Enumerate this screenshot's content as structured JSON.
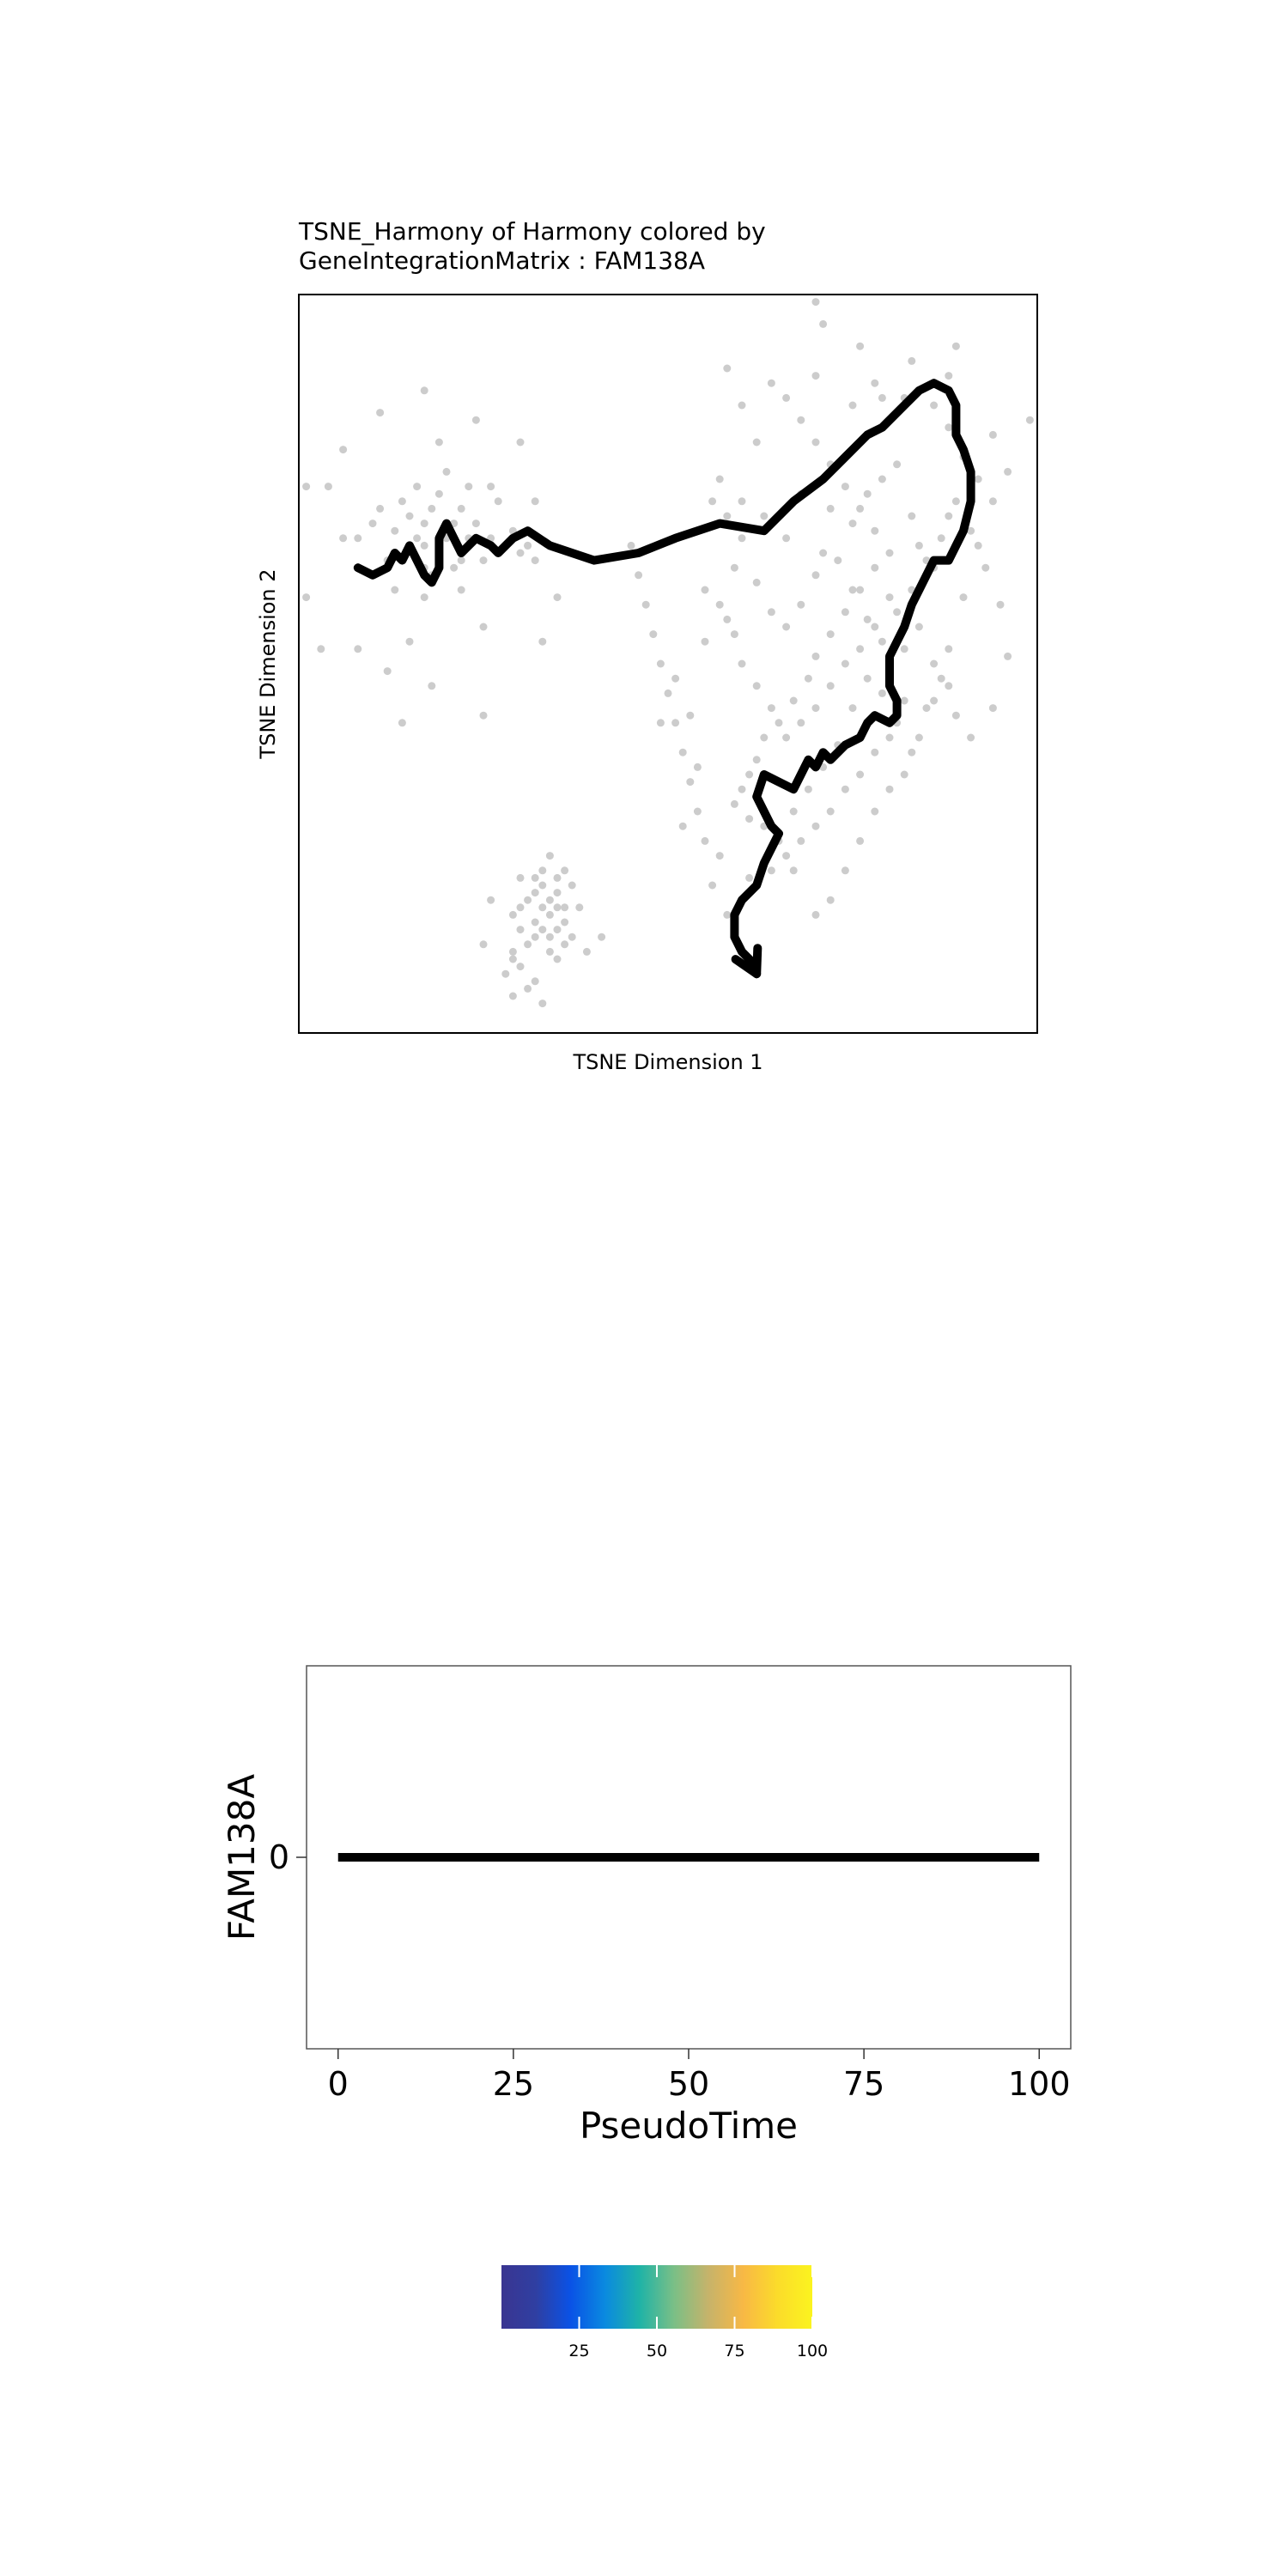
{
  "chart_data": [
    {
      "type": "scatter",
      "title": "TSNE_Harmony of Harmony colored by",
      "subtitle": "GeneIntegrationMatrix : FAM138A",
      "xlabel": "TSNE Dimension 1",
      "ylabel": "TSNE Dimension 2",
      "xlim": [
        0,
        100
      ],
      "ylim": [
        0,
        100
      ],
      "grid": false,
      "point_color": "#cccccc",
      "trajectory_color": "#000000",
      "points": [
        [
          4,
          74
        ],
        [
          6,
          67
        ],
        [
          8,
          67
        ],
        [
          10,
          69
        ],
        [
          11,
          71
        ],
        [
          12,
          64
        ],
        [
          13,
          60
        ],
        [
          13,
          68
        ],
        [
          14,
          72
        ],
        [
          15,
          70
        ],
        [
          16,
          67
        ],
        [
          16,
          74
        ],
        [
          17,
          63
        ],
        [
          17,
          66
        ],
        [
          17,
          69
        ],
        [
          18,
          71
        ],
        [
          18,
          62
        ],
        [
          19,
          73
        ],
        [
          20,
          67
        ],
        [
          20,
          76
        ],
        [
          21,
          69
        ],
        [
          21,
          63
        ],
        [
          22,
          71
        ],
        [
          22,
          64
        ],
        [
          23,
          67
        ],
        [
          23,
          74
        ],
        [
          24,
          69
        ],
        [
          25,
          64
        ],
        [
          26,
          67
        ],
        [
          27,
          72
        ],
        [
          28,
          66
        ],
        [
          29,
          68
        ],
        [
          30,
          65
        ],
        [
          31,
          66
        ],
        [
          32,
          64
        ],
        [
          25,
          55
        ],
        [
          22,
          60
        ],
        [
          17,
          59
        ],
        [
          15,
          53
        ],
        [
          12,
          49
        ],
        [
          8,
          52
        ],
        [
          1,
          74
        ],
        [
          1,
          59
        ],
        [
          6,
          79
        ],
        [
          11,
          84
        ],
        [
          17,
          87
        ],
        [
          19,
          80
        ],
        [
          24,
          83
        ],
        [
          26,
          74
        ],
        [
          30,
          80
        ],
        [
          31,
          66
        ],
        [
          32,
          72
        ],
        [
          33,
          53
        ],
        [
          35,
          59
        ],
        [
          25,
          43
        ],
        [
          14,
          42
        ],
        [
          18,
          47
        ],
        [
          3,
          52
        ],
        [
          32,
          15
        ],
        [
          34,
          16
        ],
        [
          35,
          17
        ],
        [
          33,
          14
        ],
        [
          34,
          13
        ],
        [
          31,
          12
        ],
        [
          30,
          9
        ],
        [
          29,
          11
        ],
        [
          36,
          15
        ],
        [
          35,
          14
        ],
        [
          33,
          17
        ],
        [
          32,
          19
        ],
        [
          34,
          18
        ],
        [
          33,
          20
        ],
        [
          31,
          18
        ],
        [
          32,
          13
        ],
        [
          30,
          14
        ],
        [
          29,
          16
        ],
        [
          34,
          11
        ],
        [
          36,
          12
        ],
        [
          35,
          10
        ],
        [
          37,
          13
        ],
        [
          35,
          19
        ],
        [
          30,
          17
        ],
        [
          33,
          22
        ],
        [
          32,
          21
        ],
        [
          35,
          21
        ],
        [
          36,
          22
        ],
        [
          30,
          21
        ],
        [
          34,
          24
        ],
        [
          37,
          20
        ],
        [
          38,
          17
        ],
        [
          39,
          11
        ],
        [
          41,
          13
        ],
        [
          36,
          17
        ],
        [
          31,
          6
        ],
        [
          29,
          5
        ],
        [
          28,
          8
        ],
        [
          26,
          18
        ],
        [
          29,
          10
        ],
        [
          32,
          7
        ],
        [
          33,
          4
        ],
        [
          25,
          12
        ],
        [
          57,
          75
        ],
        [
          63,
          70
        ],
        [
          66,
          67
        ],
        [
          71,
          65
        ],
        [
          68,
          73
        ],
        [
          72,
          71
        ],
        [
          75,
          69
        ],
        [
          77,
          73
        ],
        [
          79,
          75
        ],
        [
          81,
          77
        ],
        [
          83,
          70
        ],
        [
          84,
          66
        ],
        [
          86,
          63
        ],
        [
          80,
          59
        ],
        [
          78,
          63
        ],
        [
          76,
          60
        ],
        [
          74,
          57
        ],
        [
          72,
          54
        ],
        [
          70,
          51
        ],
        [
          69,
          48
        ],
        [
          67,
          45
        ],
        [
          65,
          42
        ],
        [
          63,
          40
        ],
        [
          62,
          37
        ],
        [
          61,
          35
        ],
        [
          60,
          33
        ],
        [
          59,
          31
        ],
        [
          61,
          29
        ],
        [
          63,
          28
        ],
        [
          65,
          26
        ],
        [
          67,
          30
        ],
        [
          69,
          33
        ],
        [
          71,
          36
        ],
        [
          73,
          39
        ],
        [
          75,
          44
        ],
        [
          77,
          48
        ],
        [
          79,
          53
        ],
        [
          81,
          57
        ],
        [
          83,
          60
        ],
        [
          85,
          64
        ],
        [
          87,
          67
        ],
        [
          88,
          70
        ],
        [
          80,
          65
        ],
        [
          78,
          68
        ],
        [
          76,
          71
        ],
        [
          74,
          74
        ],
        [
          72,
          77
        ],
        [
          70,
          80
        ],
        [
          68,
          83
        ],
        [
          66,
          86
        ],
        [
          64,
          88
        ],
        [
          62,
          80
        ],
        [
          60,
          85
        ],
        [
          58,
          90
        ],
        [
          70,
          89
        ],
        [
          75,
          85
        ],
        [
          78,
          88
        ],
        [
          82,
          86
        ],
        [
          86,
          85
        ],
        [
          88,
          82
        ],
        [
          90,
          78
        ],
        [
          92,
          75
        ],
        [
          94,
          72
        ],
        [
          92,
          66
        ],
        [
          90,
          59
        ],
        [
          88,
          52
        ],
        [
          86,
          45
        ],
        [
          84,
          40
        ],
        [
          82,
          35
        ],
        [
          80,
          33
        ],
        [
          78,
          30
        ],
        [
          76,
          26
        ],
        [
          74,
          22
        ],
        [
          72,
          18
        ],
        [
          70,
          16
        ],
        [
          67,
          22
        ],
        [
          64,
          25
        ],
        [
          61,
          21
        ],
        [
          57,
          24
        ],
        [
          52,
          28
        ],
        [
          54,
          36
        ],
        [
          53,
          43
        ],
        [
          49,
          42
        ],
        [
          51,
          48
        ],
        [
          55,
          53
        ],
        [
          58,
          56
        ],
        [
          59,
          63
        ],
        [
          60,
          67
        ],
        [
          62,
          61
        ],
        [
          64,
          57
        ],
        [
          66,
          55
        ],
        [
          68,
          58
        ],
        [
          70,
          62
        ],
        [
          73,
          64
        ],
        [
          75,
          60
        ],
        [
          77,
          56
        ],
        [
          79,
          46
        ],
        [
          81,
          42
        ],
        [
          83,
          38
        ],
        [
          85,
          44
        ],
        [
          87,
          48
        ],
        [
          89,
          43
        ],
        [
          91,
          40
        ],
        [
          94,
          44
        ],
        [
          96,
          51
        ],
        [
          95,
          58
        ],
        [
          93,
          63
        ],
        [
          91,
          68
        ],
        [
          89,
          72
        ],
        [
          96,
          76
        ],
        [
          99,
          83
        ],
        [
          94,
          81
        ],
        [
          88,
          89
        ],
        [
          89,
          93
        ],
        [
          83,
          91
        ],
        [
          79,
          86
        ],
        [
          76,
          93
        ],
        [
          71,
          96
        ],
        [
          70,
          99
        ],
        [
          58,
          70
        ],
        [
          60,
          72
        ],
        [
          56,
          72
        ],
        [
          55,
          60
        ],
        [
          57,
          58
        ],
        [
          59,
          54
        ],
        [
          60,
          50
        ],
        [
          62,
          47
        ],
        [
          64,
          44
        ],
        [
          66,
          40
        ],
        [
          68,
          42
        ],
        [
          70,
          44
        ],
        [
          72,
          47
        ],
        [
          74,
          50
        ],
        [
          76,
          52
        ],
        [
          78,
          55
        ],
        [
          80,
          50
        ],
        [
          82,
          52
        ],
        [
          84,
          55
        ],
        [
          86,
          50
        ],
        [
          88,
          47
        ],
        [
          82,
          45
        ],
        [
          80,
          40
        ],
        [
          78,
          38
        ],
        [
          76,
          35
        ],
        [
          74,
          33
        ],
        [
          72,
          30
        ],
        [
          70,
          28
        ],
        [
          68,
          26
        ],
        [
          66,
          24
        ],
        [
          64,
          22
        ],
        [
          62,
          20
        ],
        [
          60,
          18
        ],
        [
          58,
          16
        ],
        [
          56,
          20
        ],
        [
          55,
          26
        ],
        [
          54,
          30
        ],
        [
          53,
          34
        ],
        [
          52,
          38
        ],
        [
          51,
          42
        ],
        [
          50,
          46
        ],
        [
          49,
          50
        ],
        [
          48,
          54
        ],
        [
          47,
          58
        ],
        [
          46,
          62
        ],
        [
          45,
          66
        ]
      ],
      "trajectory": [
        [
          8,
          63
        ],
        [
          10,
          62
        ],
        [
          12,
          63
        ],
        [
          13,
          65
        ],
        [
          14,
          64
        ],
        [
          15,
          66
        ],
        [
          16,
          64
        ],
        [
          17,
          62
        ],
        [
          18,
          61
        ],
        [
          19,
          63
        ],
        [
          19,
          67
        ],
        [
          20,
          69
        ],
        [
          21,
          67
        ],
        [
          22,
          65
        ],
        [
          24,
          67
        ],
        [
          26,
          66
        ],
        [
          27,
          65
        ],
        [
          29,
          67
        ],
        [
          31,
          68
        ],
        [
          34,
          66
        ],
        [
          40,
          64
        ],
        [
          46,
          65
        ],
        [
          51,
          67
        ],
        [
          57,
          69
        ],
        [
          63,
          68
        ],
        [
          67,
          72
        ],
        [
          71,
          75
        ],
        [
          74,
          78
        ],
        [
          77,
          81
        ],
        [
          79,
          82
        ],
        [
          82,
          85
        ],
        [
          84,
          87
        ],
        [
          86,
          88
        ],
        [
          88,
          87
        ],
        [
          89,
          85
        ],
        [
          89,
          81
        ],
        [
          90,
          79
        ],
        [
          91,
          76
        ],
        [
          91,
          72
        ],
        [
          90,
          68
        ],
        [
          89,
          66
        ],
        [
          88,
          64
        ],
        [
          86,
          64
        ],
        [
          85,
          62
        ],
        [
          84,
          60
        ],
        [
          83,
          58
        ],
        [
          82,
          55
        ],
        [
          81,
          53
        ],
        [
          80,
          51
        ],
        [
          80,
          49
        ],
        [
          80,
          47
        ],
        [
          81,
          45
        ],
        [
          81,
          43
        ],
        [
          80,
          42
        ],
        [
          78,
          43
        ],
        [
          77,
          42
        ],
        [
          76,
          40
        ],
        [
          74,
          39
        ],
        [
          72,
          37
        ],
        [
          71,
          38
        ],
        [
          70,
          36
        ],
        [
          69,
          37
        ],
        [
          68,
          35
        ],
        [
          67,
          33
        ],
        [
          65,
          34
        ],
        [
          63,
          35
        ],
        [
          62,
          32
        ],
        [
          63,
          30
        ],
        [
          64,
          28
        ],
        [
          65,
          27
        ],
        [
          64,
          25
        ],
        [
          63,
          23
        ],
        [
          62,
          20
        ],
        [
          60,
          18
        ],
        [
          59,
          16
        ],
        [
          59,
          13
        ],
        [
          60,
          11
        ],
        [
          61,
          10
        ],
        [
          62,
          8
        ],
        [
          61,
          15
        ]
      ]
    },
    {
      "type": "line",
      "xlabel": "PseudoTime",
      "ylabel": "FAM138A",
      "xlim": [
        -4.5,
        104.5
      ],
      "xticks": [
        "0",
        "25",
        "50",
        "75",
        "100"
      ],
      "xtick_values": [
        0,
        25,
        50,
        75,
        100
      ],
      "yticks": [
        "0"
      ],
      "ytick_values": [
        0
      ],
      "ylim": [
        -1,
        1
      ],
      "grid": false,
      "line_color": "#000000",
      "x": [
        0,
        100
      ],
      "y": [
        0,
        0
      ]
    },
    {
      "type": "heatmap",
      "legend": "colorbar",
      "range": [
        0,
        100
      ],
      "ticks": [
        "25",
        "50",
        "75",
        "100"
      ],
      "tick_values": [
        25,
        50,
        75,
        100
      ],
      "colors": [
        "#3a3591",
        "#2f3fa2",
        "#0a52e6",
        "#0a8ae0",
        "#1fb3a7",
        "#7bbf86",
        "#c7b36a",
        "#f8b845",
        "#fbdc2a",
        "#fbf41f"
      ]
    }
  ]
}
